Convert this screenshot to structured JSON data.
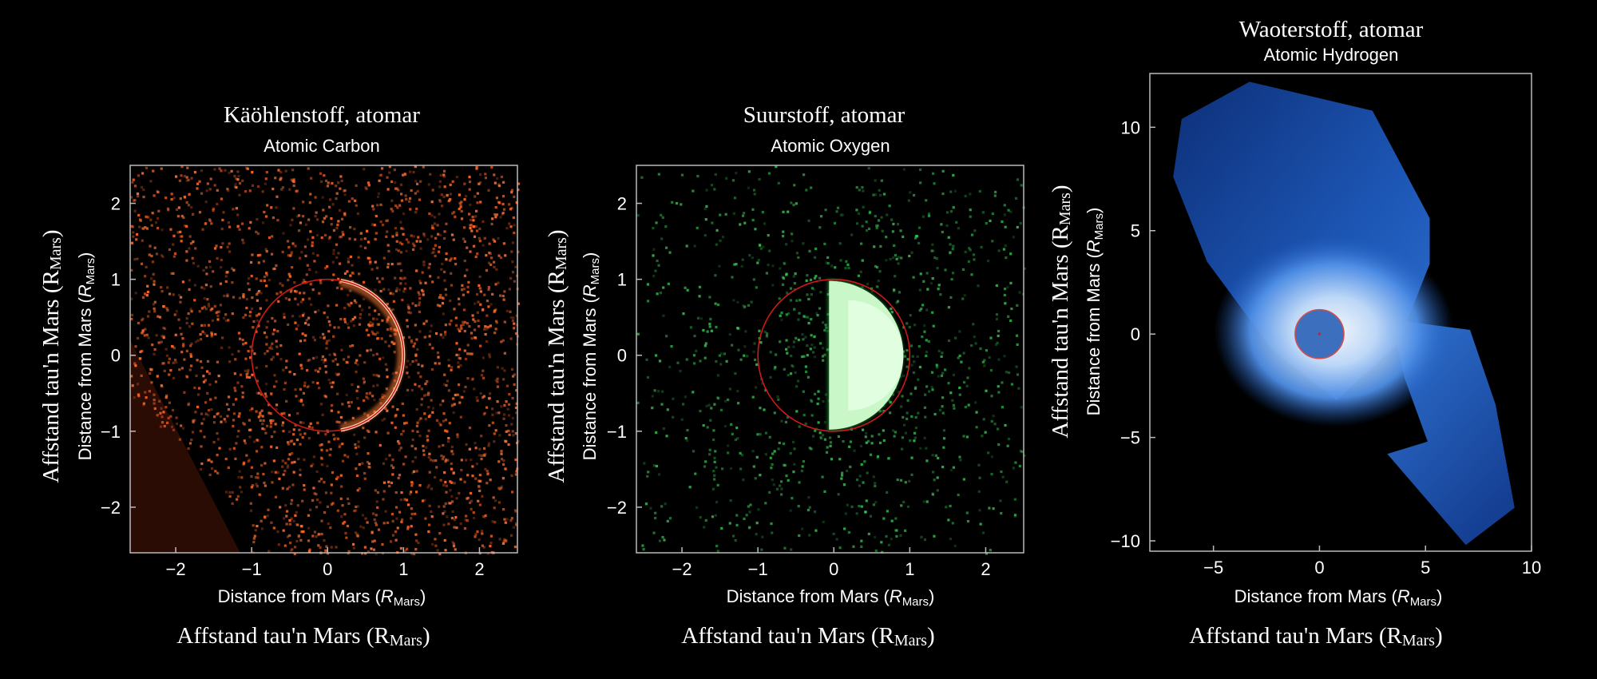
{
  "chart_data": [
    {
      "type": "heatmap",
      "title": "Käöhlenstoff, atomar",
      "subtitle": "Atomic Carbon",
      "xlabel": "Distance from Mars (",
      "xlabel_var": "R",
      "xlabel_sub": "Mars",
      "ylabel": "Distance from Mars (",
      "ylabel_var": "R",
      "ylabel_sub": "Mars",
      "xlabel_alt": "Affstand tau'n Mars (R",
      "xlabel_alt_sub": "Mars",
      "ylabel_alt": "Affstand tau'n Mars (R",
      "ylabel_alt_sub": "Mars",
      "xlim": [
        -2.6,
        2.5
      ],
      "ylim": [
        -2.6,
        2.5
      ],
      "xticks": [
        -2,
        -1,
        0,
        1,
        2
      ],
      "yticks": [
        -2,
        -1,
        0,
        1,
        2
      ],
      "xtick_labels": [
        "−2",
        "−1",
        "0",
        "1",
        "2"
      ],
      "ytick_labels": [
        "−2",
        "−1",
        "0",
        "1",
        "2"
      ],
      "planet_circle": {
        "x": 0,
        "y": 0,
        "r": 1
      },
      "bright_limb": "right",
      "color": "#ff6a2a"
    },
    {
      "type": "heatmap",
      "title": "Suurstoff, atomar",
      "subtitle": "Atomic Oxygen",
      "xlabel": "Distance from Mars (",
      "xlabel_var": "R",
      "xlabel_sub": "Mars",
      "ylabel": "Distance from Mars (",
      "ylabel_var": "R",
      "ylabel_sub": "Mars",
      "xlabel_alt": "Affstand tau'n Mars (R",
      "xlabel_alt_sub": "Mars",
      "ylabel_alt": "Affstand tau'n Mars (R",
      "ylabel_alt_sub": "Mars",
      "xlim": [
        -2.6,
        2.5
      ],
      "ylim": [
        -2.6,
        2.5
      ],
      "xticks": [
        -2,
        -1,
        0,
        1,
        2
      ],
      "yticks": [
        -2,
        -1,
        0,
        1,
        2
      ],
      "xtick_labels": [
        "−2",
        "−1",
        "0",
        "1",
        "2"
      ],
      "ytick_labels": [
        "−2",
        "−1",
        "0",
        "1",
        "2"
      ],
      "planet_circle": {
        "x": 0,
        "y": 0,
        "r": 1
      },
      "bright_limb": "right",
      "color": "#8dffa0"
    },
    {
      "type": "heatmap",
      "title": "Waoterstoff, atomar",
      "subtitle": "Atomic Hydrogen",
      "xlabel": "Distance from Mars (",
      "xlabel_var": "R",
      "xlabel_sub": "Mars",
      "ylabel": "Distance from Mars (",
      "ylabel_var": "R",
      "ylabel_sub": "Mars",
      "xlabel_alt": "Affstand tau'n Mars (R",
      "xlabel_alt_sub": "Mars",
      "ylabel_alt": "Affstand tau'n Mars (R",
      "ylabel_alt_sub": "Mars",
      "xlim": [
        -8,
        10
      ],
      "ylim": [
        -10.5,
        12.6
      ],
      "xticks": [
        -5,
        0,
        5,
        10
      ],
      "yticks": [
        -10,
        -5,
        0,
        5,
        10
      ],
      "xtick_labels": [
        "−5",
        "0",
        "5",
        "10"
      ],
      "ytick_labels": [
        "−10",
        "−5",
        "0",
        "5",
        "10"
      ],
      "planet_circle": {
        "x": 0,
        "y": 0,
        "r": 1
      },
      "regions": [
        [
          [
            -3.3,
            12.2
          ],
          [
            -6.5,
            10.4
          ],
          [
            -6.9,
            7.6
          ],
          [
            -5.3,
            3.5
          ],
          [
            -2.2,
            -0.8
          ],
          [
            0.8,
            -3.2
          ],
          [
            3.7,
            -0.5
          ],
          [
            5.2,
            3.4
          ],
          [
            5.2,
            5.6
          ],
          [
            2.5,
            10.8
          ]
        ],
        [
          [
            3.4,
            0.7
          ],
          [
            7.1,
            0.2
          ],
          [
            8.3,
            -3.4
          ],
          [
            9.2,
            -8.4
          ],
          [
            6.9,
            -10.2
          ],
          [
            3.2,
            -5.8
          ],
          [
            5.1,
            -5.2
          ],
          [
            4.0,
            -2.1
          ]
        ]
      ],
      "color": "#3a7ee0"
    }
  ]
}
